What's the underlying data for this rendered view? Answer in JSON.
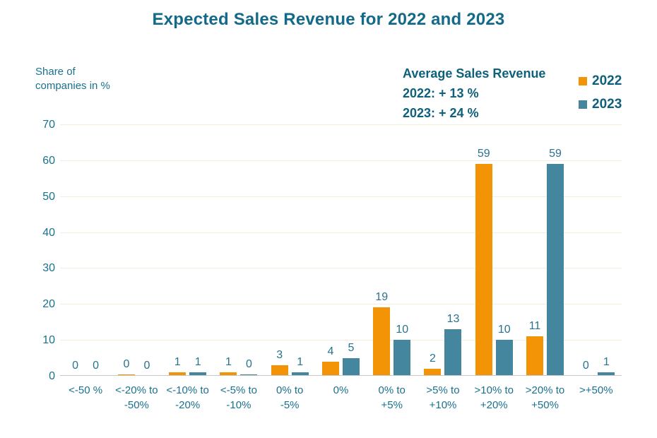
{
  "title": "Expected Sales Revenue for 2022 and 2023",
  "y_axis_note": {
    "line1": "Share of",
    "line2": "companies in %"
  },
  "annotation": {
    "heading": "Average Sales Revenue",
    "line_2022": "2022: + 13 %",
    "line_2023": "2023: + 24 %"
  },
  "legend": [
    {
      "label": "2022",
      "color": "#f29406"
    },
    {
      "label": "2023",
      "color": "#43869e"
    }
  ],
  "colors": {
    "title_text": "#136a88",
    "axis_text": "#19718f",
    "annotation_text": "#0e607c",
    "data_label_text": "#29738f",
    "gridline": "#f6ecde",
    "baseline": "#c6c6c6",
    "series_2022": "#f29406",
    "series_2023": "#43869e"
  },
  "chart_data": {
    "type": "bar",
    "title": "Expected Sales Revenue for 2022 and 2023",
    "ylabel": "Share of companies in %",
    "xlabel": "",
    "ylim": [
      0,
      70
    ],
    "yticks": [
      0,
      10,
      20,
      30,
      40,
      50,
      60,
      70
    ],
    "grid": true,
    "legend_position": "top-right",
    "categories": [
      "<-50 %",
      "<-20% to -50%",
      "<-10% to -20%",
      "<-5% to -10%",
      "0% to -5%",
      "0%",
      "0% to +5%",
      ">5% to +10%",
      ">10% to +20%",
      ">20% to +50%",
      ">+50%"
    ],
    "category_label_lines": [
      [
        "<-50 %"
      ],
      [
        "<-20% to",
        "-50%"
      ],
      [
        "<-10% to",
        "-20%"
      ],
      [
        "<-5% to",
        "-10%"
      ],
      [
        "0% to",
        "-5%"
      ],
      [
        "0%"
      ],
      [
        "0% to",
        "+5%"
      ],
      [
        ">5% to",
        "+10%"
      ],
      [
        ">10% to",
        "+20%"
      ],
      [
        ">20% to",
        "+50%"
      ],
      [
        ">+50%"
      ]
    ],
    "series": [
      {
        "name": "2022",
        "color": "#f29406",
        "values": [
          0,
          0,
          1,
          1,
          3,
          4,
          19,
          2,
          59,
          11,
          0
        ],
        "sliver_bars": [
          false,
          true,
          false,
          false,
          false,
          false,
          false,
          false,
          false,
          false,
          false
        ]
      },
      {
        "name": "2023",
        "color": "#43869e",
        "values": [
          0,
          0,
          1,
          0,
          1,
          5,
          10,
          13,
          10,
          59,
          1
        ],
        "sliver_bars": [
          false,
          false,
          false,
          true,
          false,
          false,
          false,
          false,
          false,
          false,
          false
        ]
      }
    ],
    "annotation_text": [
      "Average Sales Revenue",
      "2022: + 13 %",
      "2023: + 24 %"
    ]
  }
}
